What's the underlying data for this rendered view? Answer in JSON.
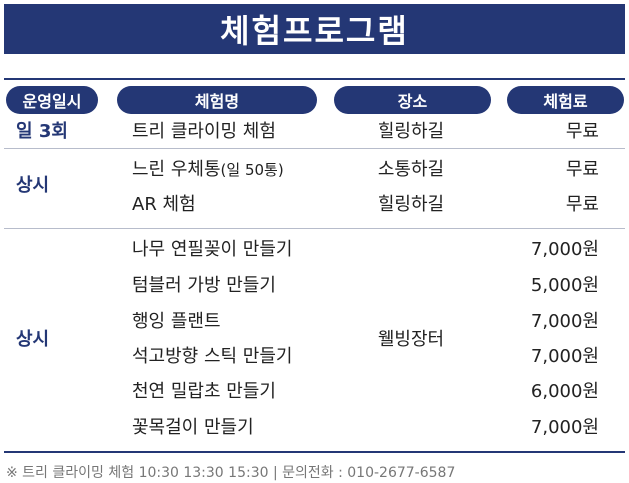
{
  "title": "체험프로그램",
  "headers": {
    "when": "운영일시",
    "name": "체험명",
    "place": "장소",
    "fee": "체험료"
  },
  "rows": [
    {
      "when": "일 3회",
      "name": "트리 클라이밍 체험",
      "place": "힐링하길",
      "fee": "무료"
    },
    {
      "when": "상시",
      "name_main": "느린 우체통",
      "name_note": "(일 50통)",
      "place": "소통하길",
      "fee": "무료"
    },
    {
      "name": "AR 체험",
      "place": "힐링하길",
      "fee": "무료"
    },
    {
      "when": "상시",
      "place": "웰빙장터",
      "items": [
        {
          "name": "나무 연필꽂이 만들기",
          "fee": "7,000원"
        },
        {
          "name": "텀블러 가방 만들기",
          "fee": "5,000원"
        },
        {
          "name": "행잉 플랜트",
          "fee": "7,000원"
        },
        {
          "name": "석고방향 스틱 만들기",
          "fee": "7,000원"
        },
        {
          "name": "천연 밀랍초 만들기",
          "fee": "6,000원"
        },
        {
          "name": "꽃목걸이 만들기",
          "fee": "7,000원"
        }
      ]
    }
  ],
  "footer": "※ 트리 클라이밍 체험 10:30 13:30 15:30 | 문의전화 : 010-2677-6587"
}
